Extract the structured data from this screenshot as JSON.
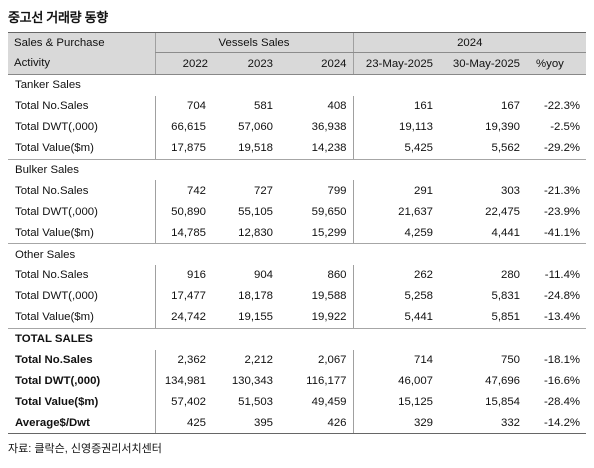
{
  "title": "중고선 거래량 동향",
  "header": {
    "row1": {
      "label": "Sales & Purchase",
      "vessels_sales": "Vessels Sales",
      "ytd": "2024"
    },
    "row2": {
      "label": "Activity",
      "cols": [
        "2022",
        "2023",
        "2024",
        "23-May-2025",
        "30-May-2025",
        "%yoy"
      ]
    }
  },
  "groups": [
    {
      "name": "Tanker Sales",
      "rows": [
        {
          "label": "Total No.Sales",
          "values": [
            "704",
            "581",
            "408",
            "161",
            "167",
            "-22.3%"
          ]
        },
        {
          "label": "Total DWT(,000)",
          "values": [
            "66,615",
            "57,060",
            "36,938",
            "19,113",
            "19,390",
            "-2.5%"
          ]
        },
        {
          "label": "Total Value($m)",
          "values": [
            "17,875",
            "19,518",
            "14,238",
            "5,425",
            "5,562",
            "-29.2%"
          ]
        }
      ]
    },
    {
      "name": "Bulker Sales",
      "rows": [
        {
          "label": "Total No.Sales",
          "values": [
            "742",
            "727",
            "799",
            "291",
            "303",
            "-21.3%"
          ]
        },
        {
          "label": "Total DWT(,000)",
          "values": [
            "50,890",
            "55,105",
            "59,650",
            "21,637",
            "22,475",
            "-23.9%"
          ]
        },
        {
          "label": "Total Value($m)",
          "values": [
            "14,785",
            "12,830",
            "15,299",
            "4,259",
            "4,441",
            "-41.1%"
          ]
        }
      ]
    },
    {
      "name": "Other Sales",
      "rows": [
        {
          "label": "Total No.Sales",
          "values": [
            "916",
            "904",
            "860",
            "262",
            "280",
            "-11.4%"
          ]
        },
        {
          "label": "Total DWT(,000)",
          "values": [
            "17,477",
            "18,178",
            "19,588",
            "5,258",
            "5,831",
            "-24.8%"
          ]
        },
        {
          "label": "Total Value($m)",
          "values": [
            "24,742",
            "19,155",
            "19,922",
            "5,441",
            "5,851",
            "-13.4%"
          ]
        }
      ]
    },
    {
      "name": "TOTAL SALES",
      "bold": true,
      "rows": [
        {
          "label": "Total No.Sales",
          "values": [
            "2,362",
            "2,212",
            "2,067",
            "714",
            "750",
            "-18.1%"
          ]
        },
        {
          "label": "Total DWT(,000)",
          "values": [
            "134,981",
            "130,343",
            "116,177",
            "46,007",
            "47,696",
            "-16.6%"
          ]
        },
        {
          "label": "Total Value($m)",
          "values": [
            "57,402",
            "51,503",
            "49,459",
            "15,125",
            "15,854",
            "-28.4%"
          ]
        },
        {
          "label": "Average$/Dwt",
          "values": [
            "425",
            "395",
            "426",
            "329",
            "332",
            "-14.2%"
          ]
        }
      ]
    }
  ],
  "source": "자료: 클락슨, 신영증권리서치센터"
}
